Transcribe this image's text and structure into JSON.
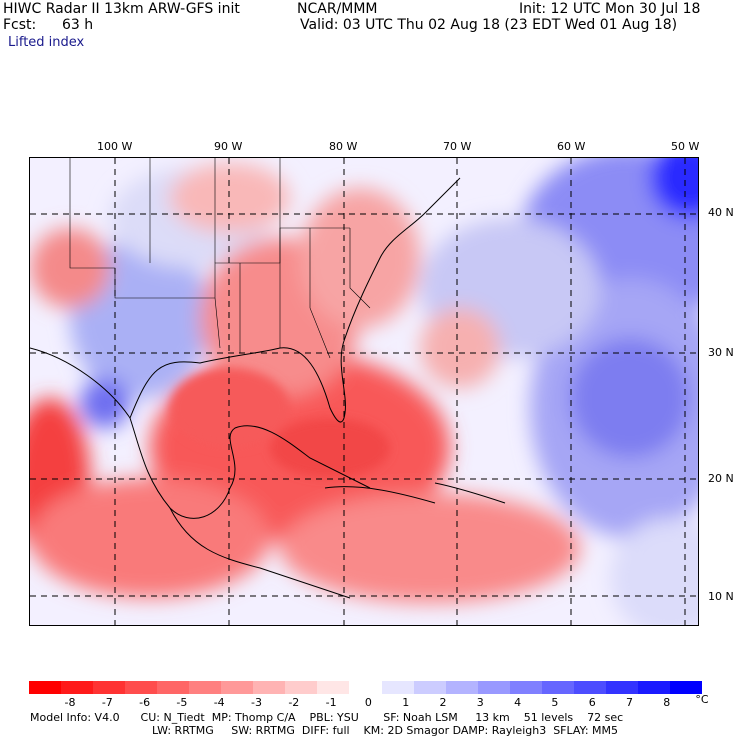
{
  "header": {
    "line1_left": "HIWC Radar II 13km ARW-GFS init",
    "line1_mid": "NCAR/MMM",
    "line1_right": "Init: 12 UTC Mon 30 Jul 18",
    "fcst_label": "Fcst:",
    "fcst_value": "63 h",
    "valid": "Valid: 03 UTC Thu 02 Aug 18 (23 EDT Wed 01 Aug 18)",
    "field": "Lifted index"
  },
  "map": {
    "lon_labels": [
      "100 W",
      "90 W",
      "80 W",
      "70 W",
      "60 W",
      "50 W"
    ],
    "lat_labels": [
      "40 N",
      "30 N",
      "20 N",
      "10 N"
    ]
  },
  "colorbar": {
    "unit": "°C",
    "labels": [
      "-8",
      "-7",
      "-6",
      "-5",
      "-4",
      "-3",
      "-2",
      "-1",
      "0",
      "1",
      "2",
      "3",
      "4",
      "5",
      "6",
      "7",
      "8"
    ],
    "colors": [
      "#ff0000",
      "#ff1a1a",
      "#ff3333",
      "#ff4d4d",
      "#ff6666",
      "#ff8080",
      "#ff9999",
      "#ffb3b3",
      "#ffcccc",
      "#ffe6e6",
      "#ffffff",
      "#e6e6ff",
      "#ccccff",
      "#b3b3ff",
      "#9999ff",
      "#8080ff",
      "#6666ff",
      "#4d4dff",
      "#3333ff",
      "#1a1aff",
      "#0000ff"
    ]
  },
  "footer": {
    "line1": "Model Info: V4.0      CU: N_Tiedt  MP: Thomp C/A    PBL: YSU       SF: Noah LSM     13 km    51 levels    72 sec",
    "line2": "LW: RRTMG     SW: RRTMG  DIFF: full    KM: 2D Smagor DAMP: Rayleigh3  SFLAY: MM5"
  }
}
